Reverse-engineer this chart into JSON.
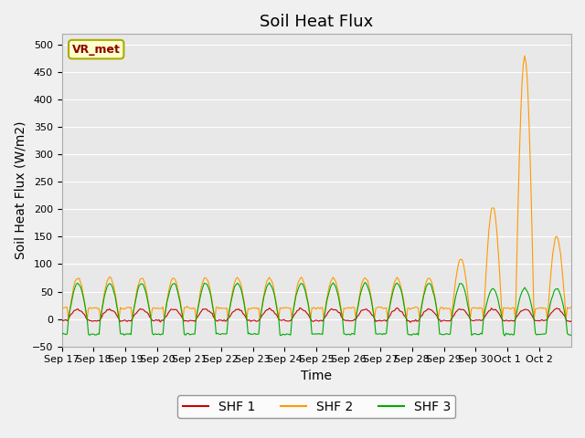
{
  "title": "Soil Heat Flux",
  "ylabel": "Soil Heat Flux (W/m2)",
  "xlabel": "Time",
  "ylim": [
    -50,
    520
  ],
  "yticks": [
    -50,
    0,
    50,
    100,
    150,
    200,
    250,
    300,
    350,
    400,
    450,
    500
  ],
  "legend_labels": [
    "SHF 1",
    "SHF 2",
    "SHF 3"
  ],
  "label_text": "VR_met",
  "label_box_color": "#ffffcc",
  "label_text_color": "#8b0000",
  "plot_bg_color": "#e8e8e8",
  "fig_bg_color": "#f0f0f0",
  "line_colors": [
    "#cc0000",
    "#ff9900",
    "#00aa00"
  ],
  "n_days": 16,
  "title_fontsize": 13,
  "axis_fontsize": 10,
  "tick_fontsize": 8,
  "tick_labels": [
    "Sep 17",
    "Sep 18",
    "Sep 19",
    "Sep 20",
    "Sep 21",
    "Sep 22",
    "Sep 23",
    "Sep 24",
    "Sep 25",
    "Sep 26",
    "Sep 27",
    "Sep 28",
    "Sep 29",
    "Sep 30",
    "Oct 1",
    "Oct 2"
  ],
  "shf2_amps": [
    75,
    75,
    75,
    75,
    75,
    75,
    75,
    75,
    75,
    75,
    75,
    75,
    110,
    205,
    480,
    150
  ],
  "shf1_amp": 18,
  "shf3_amp": 65,
  "shf1_night": -3,
  "shf2_night": 20,
  "shf3_night": -28
}
